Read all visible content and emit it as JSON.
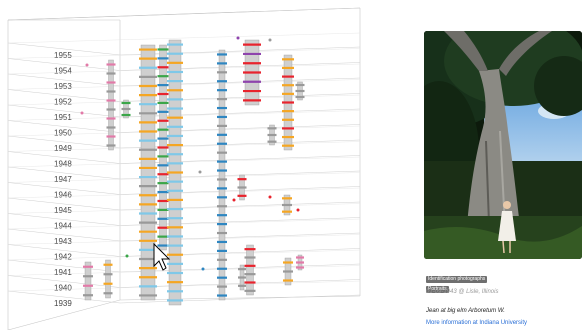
{
  "timeline": {
    "years": [
      "1955",
      "1954",
      "1953",
      "1952",
      "1951",
      "1950",
      "1949",
      "1948",
      "1947",
      "1946",
      "1945",
      "1944",
      "1943",
      "1942",
      "1941",
      "1940",
      "1939"
    ]
  },
  "photo": {
    "description_icon": "tree-photo"
  },
  "tags": [
    "Identification photographs",
    "Portraits"
  ],
  "meta": "01-09-1943 @ Lisle, Illinois",
  "caption": "Jean at big elm Arboretum W.",
  "more_link": "More information at Indiana University",
  "colors": {
    "orange": "#f5a623",
    "gray": "#999999",
    "green": "#3aa648",
    "blue": "#2e86c1",
    "lightblue": "#7fc8e8",
    "red": "#e8232d",
    "purple": "#8e44ad",
    "pink": "#e27aa8",
    "link": "#2a6fd6"
  }
}
